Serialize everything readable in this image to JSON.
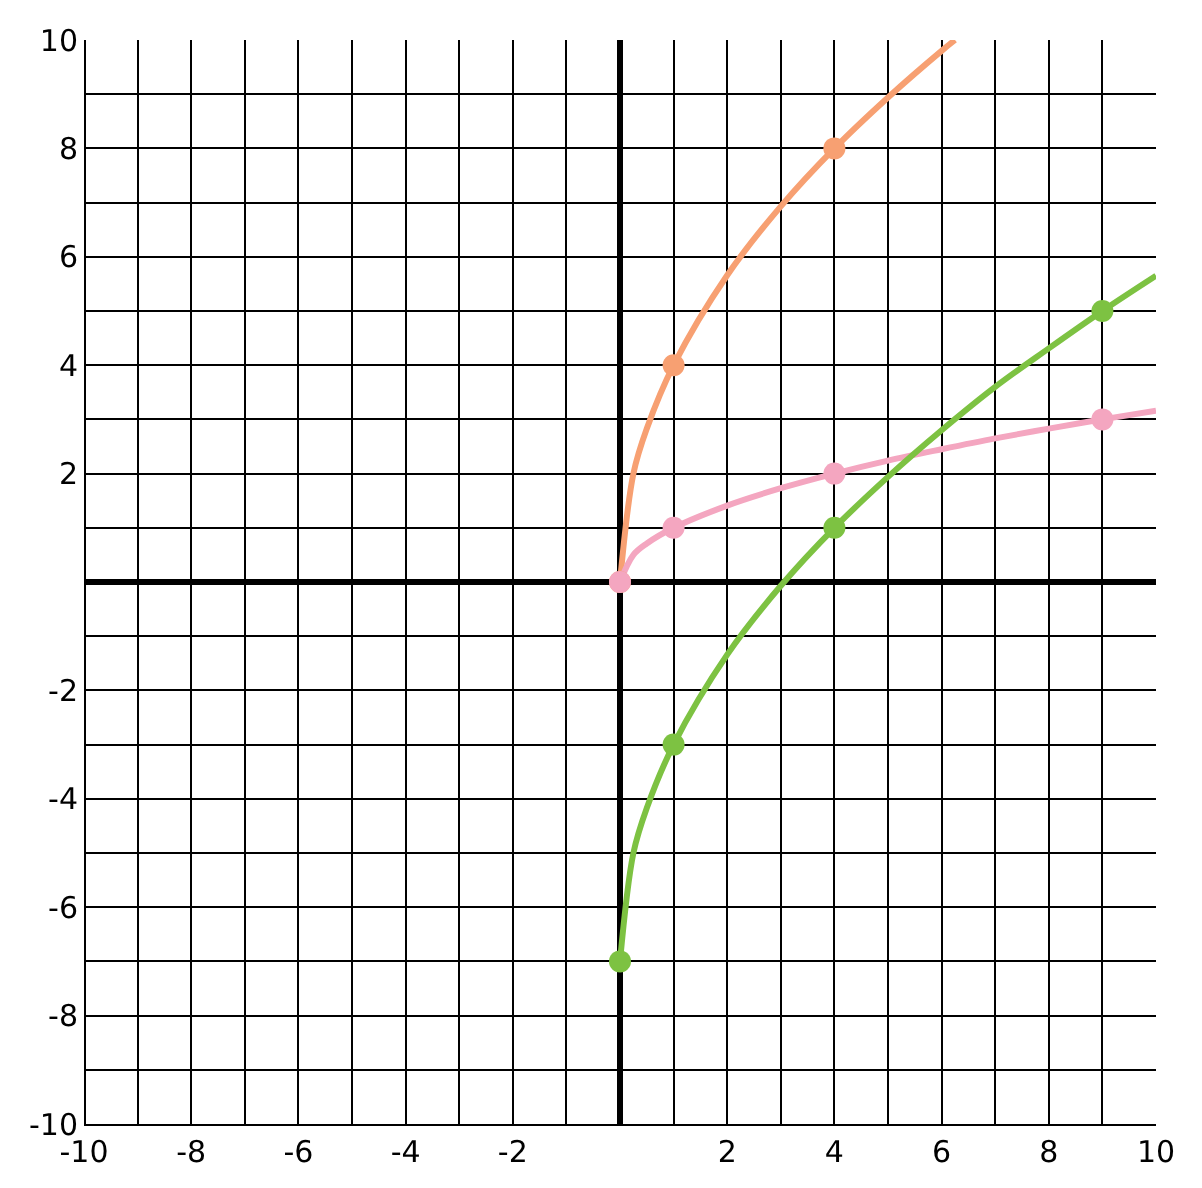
{
  "chart_data": {
    "type": "line",
    "xlim": [
      -10,
      10
    ],
    "ylim": [
      -10,
      10
    ],
    "xticks": [
      -10,
      {
        "value": -9,
        "label": null
      },
      -8,
      {
        "value": -7,
        "label": null
      },
      -6,
      {
        "value": -5,
        "label": null
      },
      -4,
      {
        "value": -3,
        "label": null
      },
      -2,
      {
        "value": -1,
        "label": null
      },
      {
        "value": 0,
        "label": null
      },
      {
        "value": 1,
        "label": null
      },
      2,
      {
        "value": 3,
        "label": null
      },
      4,
      {
        "value": 5,
        "label": null
      },
      6,
      {
        "value": 7,
        "label": null
      },
      8,
      {
        "value": 9,
        "label": null
      },
      10
    ],
    "yticks": [
      -10,
      {
        "value": -9,
        "label": null
      },
      -8,
      {
        "value": -7,
        "label": null
      },
      -6,
      {
        "value": -5,
        "label": null
      },
      -4,
      {
        "value": -3,
        "label": null
      },
      -2,
      {
        "value": -1,
        "label": null
      },
      {
        "value": 0,
        "label": null
      },
      {
        "value": 1,
        "label": null
      },
      2,
      {
        "value": 3,
        "label": null
      },
      4,
      {
        "value": 5,
        "label": null
      },
      6,
      {
        "value": 7,
        "label": null
      },
      8,
      {
        "value": 9,
        "label": null
      },
      10
    ],
    "grid": true,
    "marker": "none",
    "line_style": "solid",
    "series": [
      {
        "type": "line",
        "color": "#f7a072",
        "x": [
          0,
          0.25,
          0.5,
          1,
          2,
          3,
          4,
          5,
          6,
          6.25
        ],
        "values": [
          0,
          2,
          2.83,
          4,
          5.66,
          6.93,
          8,
          8.94,
          9.8,
          10
        ]
      },
      {
        "type": "line",
        "color": "#f4a6c0",
        "x": [
          0,
          0.25,
          0.5,
          1,
          2,
          3,
          4,
          5,
          6,
          7,
          8,
          9,
          10
        ],
        "values": [
          0,
          0.5,
          0.71,
          1,
          1.41,
          1.73,
          2,
          2.24,
          2.45,
          2.65,
          2.83,
          3,
          3.16
        ]
      },
      {
        "type": "line",
        "color": "#7dc242",
        "x": [
          0,
          0.25,
          0.5,
          1,
          2,
          3,
          4,
          5,
          6,
          7,
          8,
          9,
          10
        ],
        "values": [
          -7,
          -5,
          -4.17,
          -3,
          -1.34,
          -0.07,
          1,
          1.94,
          2.8,
          3.6,
          4.31,
          5,
          5.65
        ]
      },
      {
        "type": "scatter",
        "marker": "circle",
        "color": "#f7a072",
        "x": [
          0,
          1,
          4
        ],
        "values": [
          0,
          4,
          8
        ]
      },
      {
        "type": "scatter",
        "marker": "circle",
        "color": "#f4a6c0",
        "x": [
          0,
          1,
          4,
          9
        ],
        "values": [
          0,
          1,
          2,
          3
        ]
      },
      {
        "type": "scatter",
        "marker": "circle",
        "color": "#7dc242",
        "x": [
          0,
          1,
          4,
          9
        ],
        "values": [
          -7,
          -3,
          1,
          5
        ]
      }
    ]
  }
}
